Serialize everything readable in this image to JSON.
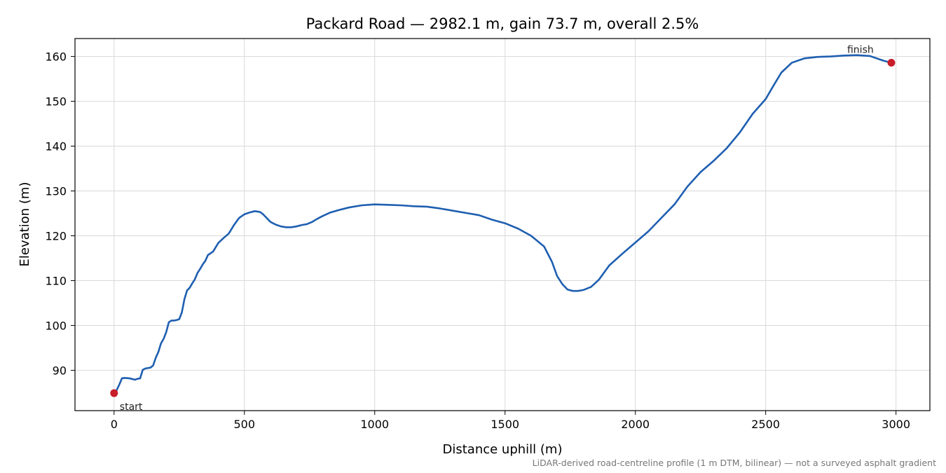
{
  "chart_data": {
    "type": "line",
    "title": "Packard Road — 2982.1 m, gain 73.7 m, overall 2.5%",
    "xlabel": "Distance uphill (m)",
    "ylabel": "Elevation (m)",
    "xlim": [
      -150,
      3130
    ],
    "ylim": [
      81,
      164
    ],
    "xticks": [
      0,
      500,
      1000,
      1500,
      2000,
      2500,
      3000
    ],
    "yticks": [
      90,
      100,
      110,
      120,
      130,
      140,
      150,
      160
    ],
    "grid": true,
    "line_color": "#1f5fb0",
    "marker_color": "#c81e2a",
    "series": [
      {
        "x": [
          0,
          10,
          20,
          30,
          40,
          60,
          80,
          90,
          100,
          110,
          120,
          140,
          150,
          160,
          170,
          180,
          190,
          200,
          210,
          220,
          230,
          240,
          250,
          260,
          270,
          280,
          290,
          300,
          310,
          320,
          330,
          340,
          350,
          360,
          380,
          400,
          420,
          440,
          460,
          480,
          500,
          520,
          540,
          560,
          570,
          580,
          600,
          620,
          640,
          660,
          680,
          700,
          720,
          740,
          760,
          780,
          800,
          830,
          860,
          900,
          950,
          1000,
          1050,
          1100,
          1150,
          1200,
          1250,
          1300,
          1350,
          1400,
          1450,
          1500,
          1550,
          1600,
          1650,
          1680,
          1700,
          1720,
          1740,
          1760,
          1780,
          1800,
          1830,
          1860,
          1900,
          1950,
          2000,
          2050,
          2100,
          2150,
          2200,
          2250,
          2300,
          2350,
          2400,
          2450,
          2500,
          2530,
          2560,
          2600,
          2650,
          2700,
          2750,
          2800,
          2850,
          2900,
          2950,
          2982.1
        ],
        "y": [
          84.9,
          85.6,
          86.8,
          88.2,
          88.3,
          88.2,
          87.9,
          88.1,
          88.2,
          90.1,
          90.4,
          90.6,
          91.1,
          92.8,
          94.1,
          96.0,
          97.0,
          98.5,
          100.7,
          101.1,
          101.1,
          101.2,
          101.4,
          102.9,
          105.9,
          107.8,
          108.4,
          109.4,
          110.3,
          111.7,
          112.6,
          113.6,
          114.4,
          115.7,
          116.5,
          118.4,
          119.5,
          120.5,
          122.4,
          124.0,
          124.8,
          125.2,
          125.5,
          125.3,
          124.9,
          124.3,
          123.1,
          122.5,
          122.1,
          121.9,
          121.9,
          122.1,
          122.4,
          122.6,
          123.1,
          123.8,
          124.4,
          125.2,
          125.7,
          126.3,
          126.8,
          127.0,
          126.9,
          126.8,
          126.6,
          126.5,
          126.1,
          125.6,
          125.1,
          124.6,
          123.6,
          122.8,
          121.6,
          120.0,
          117.6,
          114.2,
          111.0,
          109.2,
          108.0,
          107.7,
          107.7,
          107.9,
          108.6,
          110.2,
          113.4,
          116.0,
          118.5,
          121.0,
          124.0,
          127.0,
          131.0,
          134.2,
          136.7,
          139.5,
          143.0,
          147.2,
          150.5,
          153.5,
          156.4,
          158.6,
          159.6,
          159.9,
          160.0,
          160.2,
          160.3,
          160.1,
          159.1,
          158.6
        ]
      }
    ],
    "annotations": [
      {
        "text": "start",
        "x": 0,
        "y": 84.9
      },
      {
        "text": "finish",
        "x": 2982.1,
        "y": 158.6
      }
    ]
  },
  "footnote": "LiDAR-derived road-centreline profile (1 m DTM, bilinear) — not a surveyed asphalt gradient"
}
